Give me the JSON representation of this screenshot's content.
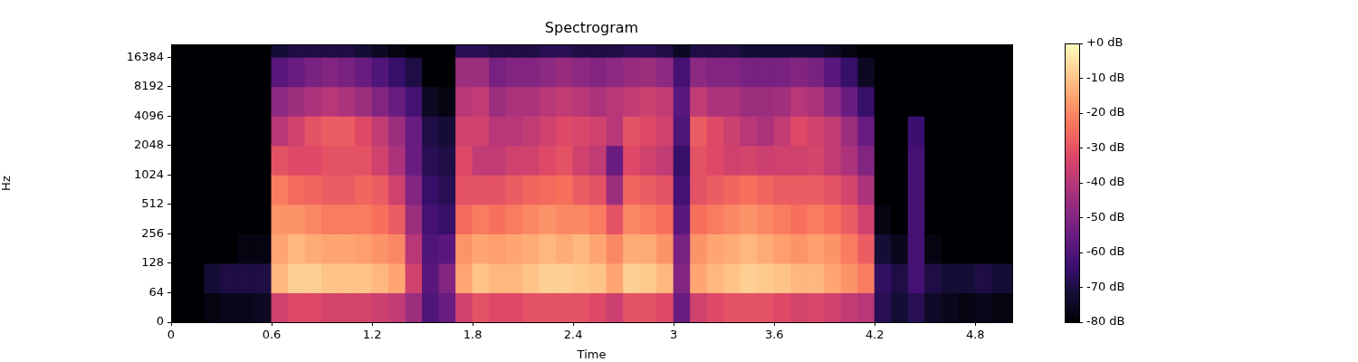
{
  "chart_data": {
    "type": "heatmap",
    "title": "Spectrogram",
    "x_label": "Time",
    "y_label": "Hz",
    "xlim": [
      0,
      5.02
    ],
    "xticks": [
      0,
      0.6,
      1.2,
      1.8,
      2.4,
      3,
      3.6,
      4.2,
      4.8
    ],
    "ylim": [
      0,
      22050
    ],
    "yticks": [
      0,
      64,
      128,
      256,
      512,
      1024,
      2048,
      4096,
      8192,
      16384
    ],
    "log": "y",
    "grid": false,
    "time_edges": [
      0,
      0.1,
      0.2,
      0.3,
      0.4,
      0.5,
      0.6,
      0.7,
      0.8,
      0.9,
      1.0,
      1.1,
      1.2,
      1.3,
      1.4,
      1.5,
      1.6,
      1.7,
      1.8,
      1.9,
      2.0,
      2.1,
      2.2,
      2.3,
      2.4,
      2.5,
      2.6,
      2.7,
      2.8,
      2.9,
      3.0,
      3.1,
      3.2,
      3.3,
      3.4,
      3.5,
      3.6,
      3.7,
      3.8,
      3.9,
      4.0,
      4.1,
      4.2,
      4.3,
      4.4,
      4.5,
      4.6,
      4.7,
      4.8,
      4.9,
      5.0,
      5.02
    ],
    "freq_edges": [
      0,
      64,
      128,
      256,
      512,
      1024,
      2048,
      4096,
      8192,
      16384,
      22050
    ],
    "cells": [
      [
        -80,
        -80,
        -80,
        -80,
        -80,
        -80,
        -80,
        -80,
        -80,
        -80
      ],
      [
        -80,
        -80,
        -80,
        -80,
        -80,
        -80,
        -80,
        -80,
        -80,
        -80
      ],
      [
        -78,
        -72,
        -80,
        -80,
        -80,
        -80,
        -80,
        -80,
        -80,
        -80
      ],
      [
        -76,
        -70,
        -80,
        -80,
        -80,
        -80,
        -80,
        -80,
        -80,
        -80
      ],
      [
        -76,
        -70,
        -78,
        -80,
        -80,
        -80,
        -80,
        -80,
        -80,
        -80
      ],
      [
        -75,
        -70,
        -78,
        -80,
        -80,
        -80,
        -80,
        -80,
        -80,
        -80
      ],
      [
        -35,
        -12,
        -15,
        -18,
        -22,
        -30,
        -40,
        -48,
        -58,
        -72
      ],
      [
        -32,
        -8,
        -12,
        -18,
        -25,
        -32,
        -35,
        -45,
        -55,
        -70
      ],
      [
        -32,
        -8,
        -14,
        -20,
        -26,
        -32,
        -30,
        -42,
        -52,
        -70
      ],
      [
        -34,
        -10,
        -15,
        -22,
        -28,
        -30,
        -28,
        -40,
        -50,
        -70
      ],
      [
        -34,
        -10,
        -15,
        -22,
        -28,
        -30,
        -28,
        -42,
        -52,
        -70
      ],
      [
        -34,
        -10,
        -16,
        -22,
        -26,
        -30,
        -32,
        -45,
        -55,
        -72
      ],
      [
        -36,
        -12,
        -18,
        -24,
        -28,
        -35,
        -38,
        -50,
        -60,
        -75
      ],
      [
        -38,
        -15,
        -20,
        -28,
        -35,
        -42,
        -45,
        -55,
        -65,
        -78
      ],
      [
        -45,
        -35,
        -40,
        -45,
        -50,
        -55,
        -55,
        -62,
        -70,
        -80
      ],
      [
        -60,
        -58,
        -60,
        -62,
        -65,
        -68,
        -70,
        -75,
        -80,
        -80
      ],
      [
        -55,
        -50,
        -58,
        -65,
        -68,
        -70,
        -72,
        -78,
        -80,
        -80
      ],
      [
        -35,
        -15,
        -18,
        -25,
        -30,
        -32,
        -35,
        -40,
        -45,
        -68
      ],
      [
        -30,
        -10,
        -15,
        -22,
        -30,
        -38,
        -35,
        -38,
        -45,
        -68
      ],
      [
        -32,
        -12,
        -16,
        -24,
        -30,
        -38,
        -40,
        -45,
        -52,
        -70
      ],
      [
        -32,
        -12,
        -15,
        -22,
        -28,
        -35,
        -40,
        -42,
        -50,
        -70
      ],
      [
        -30,
        -10,
        -14,
        -20,
        -26,
        -35,
        -38,
        -42,
        -50,
        -70
      ],
      [
        -30,
        -8,
        -12,
        -18,
        -25,
        -32,
        -35,
        -40,
        -48,
        -68
      ],
      [
        -30,
        -8,
        -14,
        -20,
        -24,
        -30,
        -32,
        -38,
        -46,
        -68
      ],
      [
        -30,
        -9,
        -12,
        -20,
        -28,
        -35,
        -33,
        -40,
        -48,
        -70
      ],
      [
        -32,
        -10,
        -15,
        -22,
        -30,
        -38,
        -35,
        -42,
        -50,
        -70
      ],
      [
        -36,
        -15,
        -20,
        -30,
        -45,
        -55,
        -40,
        -40,
        -48,
        -70
      ],
      [
        -30,
        -8,
        -14,
        -20,
        -26,
        -32,
        -30,
        -38,
        -46,
        -68
      ],
      [
        -30,
        -9,
        -14,
        -22,
        -28,
        -35,
        -32,
        -36,
        -45,
        -68
      ],
      [
        -32,
        -12,
        -18,
        -24,
        -30,
        -38,
        -35,
        -38,
        -48,
        -70
      ],
      [
        -55,
        -50,
        -52,
        -58,
        -62,
        -65,
        -60,
        -58,
        -62,
        -75
      ],
      [
        -35,
        -15,
        -18,
        -24,
        -30,
        -30,
        -28,
        -38,
        -48,
        -70
      ],
      [
        -32,
        -12,
        -15,
        -22,
        -28,
        -32,
        -32,
        -42,
        -50,
        -70
      ],
      [
        -30,
        -10,
        -14,
        -20,
        -26,
        -35,
        -36,
        -42,
        -50,
        -70
      ],
      [
        -30,
        -8,
        -12,
        -18,
        -24,
        -34,
        -40,
        -45,
        -52,
        -72
      ],
      [
        -30,
        -9,
        -14,
        -20,
        -26,
        -36,
        -42,
        -45,
        -52,
        -72
      ],
      [
        -32,
        -10,
        -16,
        -22,
        -28,
        -35,
        -38,
        -44,
        -52,
        -72
      ],
      [
        -34,
        -12,
        -18,
        -24,
        -28,
        -35,
        -32,
        -40,
        -50,
        -72
      ],
      [
        -33,
        -12,
        -16,
        -22,
        -28,
        -34,
        -35,
        -42,
        -52,
        -72
      ],
      [
        -35,
        -15,
        -18,
        -24,
        -30,
        -38,
        -38,
        -48,
        -58,
        -75
      ],
      [
        -38,
        -18,
        -22,
        -28,
        -34,
        -42,
        -45,
        -55,
        -65,
        -78
      ],
      [
        -40,
        -22,
        -28,
        -35,
        -42,
        -50,
        -55,
        -65,
        -75,
        -80
      ],
      [
        -68,
        -66,
        -72,
        -78,
        -80,
        -80,
        -80,
        -80,
        -80,
        -80
      ],
      [
        -72,
        -70,
        -76,
        -80,
        -80,
        -80,
        -80,
        -80,
        -80,
        -80
      ],
      [
        -68,
        -62,
        -62,
        -62,
        -62,
        -62,
        -64,
        -80,
        -80,
        -80
      ],
      [
        -74,
        -70,
        -78,
        -80,
        -80,
        -80,
        -80,
        -80,
        -80,
        -80
      ],
      [
        -76,
        -72,
        -80,
        -80,
        -80,
        -80,
        -80,
        -80,
        -80,
        -80
      ],
      [
        -78,
        -72,
        -80,
        -80,
        -80,
        -80,
        -80,
        -80,
        -80,
        -80
      ],
      [
        -76,
        -70,
        -80,
        -80,
        -80,
        -80,
        -80,
        -80,
        -80,
        -80
      ],
      [
        -78,
        -72,
        -80,
        -80,
        -80,
        -80,
        -80,
        -80,
        -80,
        -80
      ],
      [
        -78,
        -72,
        -80,
        -80,
        -80,
        -80,
        -80,
        -80,
        -80,
        -80
      ]
    ],
    "colorbar": {
      "range": [
        -80,
        0
      ],
      "ticks": [
        {
          "value": 0,
          "label": "+0 dB"
        },
        {
          "value": -10,
          "label": "-10 dB"
        },
        {
          "value": -20,
          "label": "-20 dB"
        },
        {
          "value": -30,
          "label": "-30 dB"
        },
        {
          "value": -40,
          "label": "-40 dB"
        },
        {
          "value": -50,
          "label": "-50 dB"
        },
        {
          "value": -60,
          "label": "-60 dB"
        },
        {
          "value": -70,
          "label": "-70 dB"
        },
        {
          "value": -80,
          "label": "-80 dB"
        }
      ]
    }
  }
}
